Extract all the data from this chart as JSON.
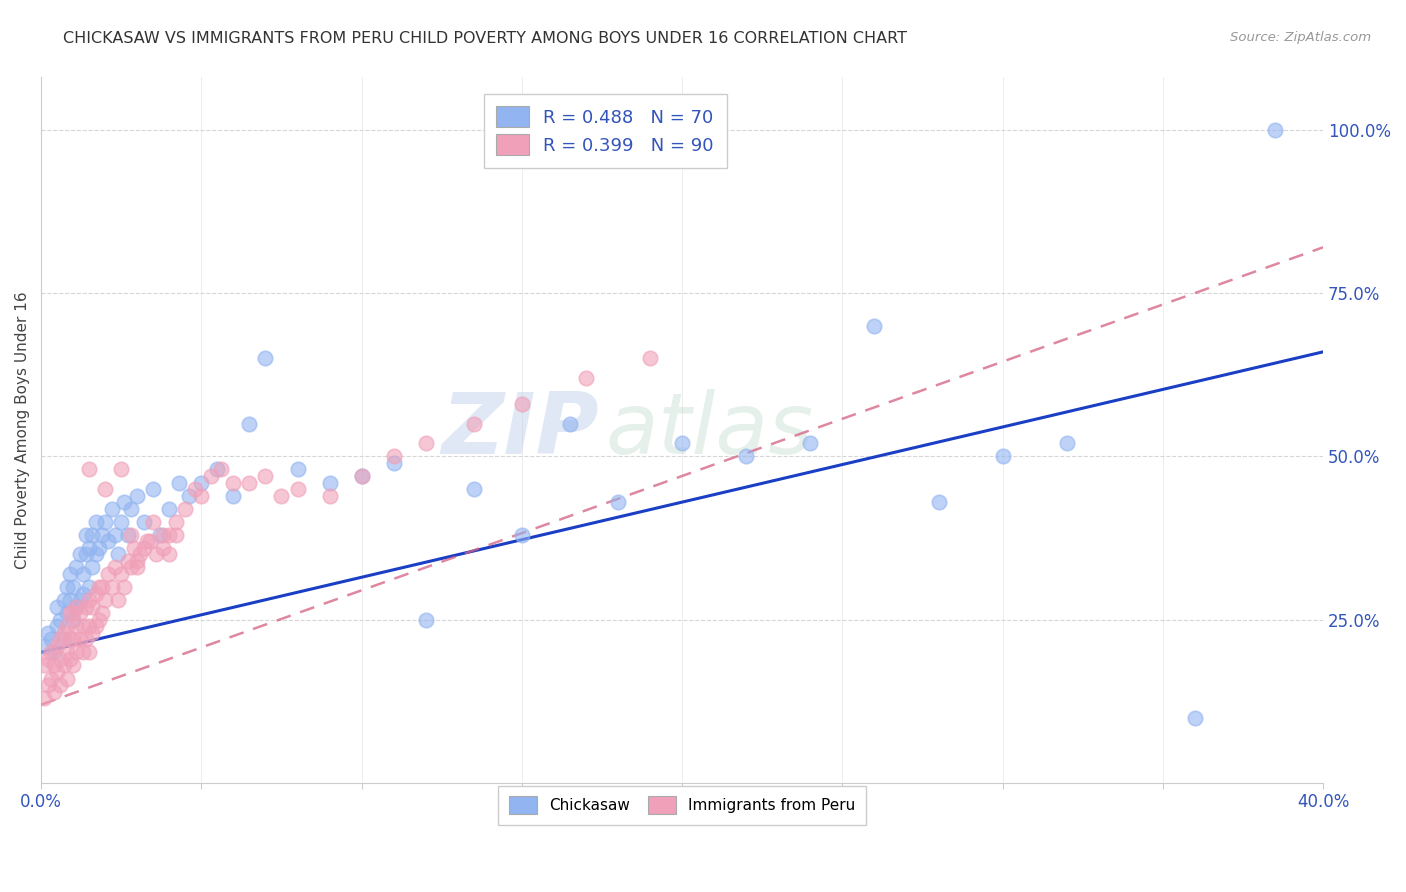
{
  "title": "CHICKASAW VS IMMIGRANTS FROM PERU CHILD POVERTY AMONG BOYS UNDER 16 CORRELATION CHART",
  "source": "Source: ZipAtlas.com",
  "ylabel": "Child Poverty Among Boys Under 16",
  "xlim": [
    0.0,
    0.4
  ],
  "ylim": [
    0.0,
    1.08
  ],
  "xtick_positions": [
    0.0,
    0.05,
    0.1,
    0.15,
    0.2,
    0.25,
    0.3,
    0.35,
    0.4
  ],
  "xticklabels": [
    "0.0%",
    "",
    "",
    "",
    "",
    "",
    "",
    "",
    "40.0%"
  ],
  "yticks_right": [
    0.25,
    0.5,
    0.75,
    1.0
  ],
  "ytick_right_labels": [
    "25.0%",
    "50.0%",
    "75.0%",
    "100.0%"
  ],
  "watermark_zip": "ZIP",
  "watermark_atlas": "atlas",
  "legend_line1": "R = 0.488   N = 70",
  "legend_line2": "R = 0.399   N = 90",
  "legend_bottom1": "Chickasaw",
  "legend_bottom2": "Immigrants from Peru",
  "chickasaw_color": "#92b4f0",
  "peru_color": "#f0a0b8",
  "line1_color": "#1a3fc4",
  "line2_color": "#d46080",
  "background_color": "#ffffff",
  "grid_color": "#cccccc",
  "line1_slope": 1.15,
  "line1_intercept": 0.2,
  "line2_slope": 1.75,
  "line2_intercept": 0.12,
  "chickasaw_x": [
    0.001,
    0.002,
    0.003,
    0.004,
    0.005,
    0.005,
    0.006,
    0.007,
    0.007,
    0.008,
    0.008,
    0.009,
    0.009,
    0.01,
    0.01,
    0.011,
    0.011,
    0.012,
    0.012,
    0.013,
    0.013,
    0.014,
    0.014,
    0.015,
    0.015,
    0.016,
    0.016,
    0.017,
    0.017,
    0.018,
    0.019,
    0.02,
    0.021,
    0.022,
    0.023,
    0.024,
    0.025,
    0.026,
    0.027,
    0.028,
    0.03,
    0.032,
    0.035,
    0.037,
    0.04,
    0.043,
    0.046,
    0.05,
    0.055,
    0.06,
    0.065,
    0.07,
    0.08,
    0.09,
    0.1,
    0.11,
    0.12,
    0.135,
    0.15,
    0.165,
    0.18,
    0.2,
    0.22,
    0.24,
    0.26,
    0.28,
    0.3,
    0.32,
    0.36,
    0.385
  ],
  "chickasaw_y": [
    0.21,
    0.23,
    0.22,
    0.2,
    0.24,
    0.27,
    0.25,
    0.28,
    0.22,
    0.3,
    0.26,
    0.28,
    0.32,
    0.25,
    0.3,
    0.27,
    0.33,
    0.28,
    0.35,
    0.29,
    0.32,
    0.35,
    0.38,
    0.3,
    0.36,
    0.33,
    0.38,
    0.35,
    0.4,
    0.36,
    0.38,
    0.4,
    0.37,
    0.42,
    0.38,
    0.35,
    0.4,
    0.43,
    0.38,
    0.42,
    0.44,
    0.4,
    0.45,
    0.38,
    0.42,
    0.46,
    0.44,
    0.46,
    0.48,
    0.44,
    0.55,
    0.65,
    0.48,
    0.46,
    0.47,
    0.49,
    0.25,
    0.45,
    0.38,
    0.55,
    0.43,
    0.52,
    0.5,
    0.52,
    0.7,
    0.43,
    0.5,
    0.52,
    0.1,
    1.0
  ],
  "peru_x": [
    0.001,
    0.001,
    0.002,
    0.002,
    0.003,
    0.003,
    0.004,
    0.004,
    0.005,
    0.005,
    0.006,
    0.006,
    0.006,
    0.007,
    0.007,
    0.008,
    0.008,
    0.008,
    0.009,
    0.009,
    0.009,
    0.01,
    0.01,
    0.01,
    0.011,
    0.011,
    0.011,
    0.012,
    0.012,
    0.013,
    0.013,
    0.014,
    0.014,
    0.015,
    0.015,
    0.015,
    0.016,
    0.016,
    0.017,
    0.017,
    0.018,
    0.018,
    0.019,
    0.019,
    0.02,
    0.021,
    0.022,
    0.023,
    0.024,
    0.025,
    0.026,
    0.027,
    0.028,
    0.029,
    0.03,
    0.031,
    0.032,
    0.034,
    0.036,
    0.038,
    0.04,
    0.042,
    0.045,
    0.048,
    0.05,
    0.053,
    0.056,
    0.06,
    0.065,
    0.07,
    0.075,
    0.08,
    0.09,
    0.1,
    0.11,
    0.12,
    0.135,
    0.15,
    0.17,
    0.19,
    0.015,
    0.02,
    0.025,
    0.028,
    0.03,
    0.033,
    0.035,
    0.038,
    0.04,
    0.042
  ],
  "peru_y": [
    0.13,
    0.18,
    0.15,
    0.19,
    0.16,
    0.2,
    0.14,
    0.18,
    0.17,
    0.21,
    0.15,
    0.19,
    0.22,
    0.18,
    0.23,
    0.16,
    0.2,
    0.24,
    0.19,
    0.22,
    0.26,
    0.18,
    0.22,
    0.26,
    0.2,
    0.24,
    0.27,
    0.22,
    0.26,
    0.2,
    0.24,
    0.22,
    0.27,
    0.2,
    0.24,
    0.28,
    0.23,
    0.27,
    0.24,
    0.29,
    0.25,
    0.3,
    0.26,
    0.3,
    0.28,
    0.32,
    0.3,
    0.33,
    0.28,
    0.32,
    0.3,
    0.34,
    0.33,
    0.36,
    0.33,
    0.35,
    0.36,
    0.37,
    0.35,
    0.38,
    0.38,
    0.4,
    0.42,
    0.45,
    0.44,
    0.47,
    0.48,
    0.46,
    0.46,
    0.47,
    0.44,
    0.45,
    0.44,
    0.47,
    0.5,
    0.52,
    0.55,
    0.58,
    0.62,
    0.65,
    0.48,
    0.45,
    0.48,
    0.38,
    0.34,
    0.37,
    0.4,
    0.36,
    0.35,
    0.38
  ]
}
